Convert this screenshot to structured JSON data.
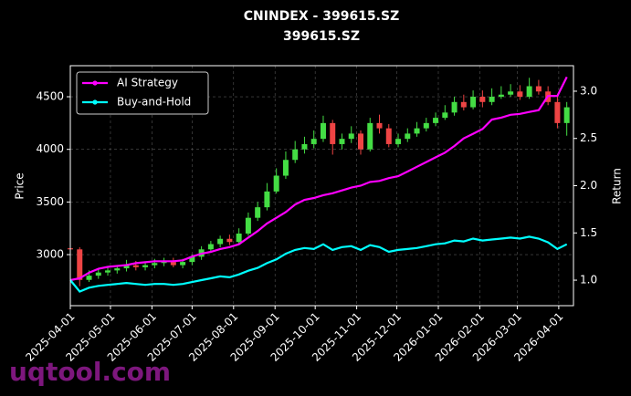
{
  "chart_data": {
    "type": "candlestick-dual",
    "title": "CNINDEX - 399615.SZ",
    "subtitle": "399615.SZ",
    "ylabel": "Price",
    "y2label": "Return",
    "watermark": "uqtool.com",
    "grid": true,
    "legend": "upper left",
    "up_color": "#44dd44",
    "down_color": "#ee4444",
    "x": [
      "2025-04-01",
      "2025-04-08",
      "2025-04-15",
      "2025-04-22",
      "2025-04-29",
      "2025-05-06",
      "2025-05-13",
      "2025-05-20",
      "2025-05-27",
      "2025-06-03",
      "2025-06-10",
      "2025-06-17",
      "2025-06-24",
      "2025-07-01",
      "2025-07-08",
      "2025-07-15",
      "2025-07-22",
      "2025-07-29",
      "2025-08-05",
      "2025-08-12",
      "2025-08-19",
      "2025-08-26",
      "2025-09-02",
      "2025-09-09",
      "2025-09-16",
      "2025-09-23",
      "2025-09-30",
      "2025-10-07",
      "2025-10-14",
      "2025-10-21",
      "2025-10-28",
      "2025-11-04",
      "2025-11-11",
      "2025-11-18",
      "2025-11-25",
      "2025-12-02",
      "2025-12-09",
      "2025-12-16",
      "2025-12-23",
      "2025-12-30",
      "2026-01-06",
      "2026-01-13",
      "2026-01-20",
      "2026-01-27",
      "2026-02-03",
      "2026-02-10",
      "2026-02-17",
      "2026-02-24",
      "2026-03-03",
      "2026-03-10",
      "2026-03-17",
      "2026-03-24",
      "2026-03-31",
      "2026-04-07"
    ],
    "open": [
      3060,
      3050,
      2760,
      2800,
      2830,
      2850,
      2870,
      2900,
      2880,
      2900,
      2920,
      2930,
      2900,
      2930,
      2980,
      3050,
      3100,
      3150,
      3120,
      3200,
      3350,
      3450,
      3600,
      3750,
      3900,
      4000,
      4050,
      4100,
      4250,
      4050,
      4100,
      4150,
      4000,
      4250,
      4200,
      4050,
      4100,
      4150,
      4200,
      4250,
      4300,
      4350,
      4450,
      4400,
      4500,
      4450,
      4500,
      4520,
      4550,
      4500,
      4600,
      4550,
      4450,
      4250
    ],
    "high": [
      3100,
      3070,
      2850,
      2870,
      2890,
      2900,
      2950,
      2940,
      2930,
      2960,
      2970,
      2970,
      2960,
      3000,
      3080,
      3130,
      3180,
      3190,
      3250,
      3400,
      3500,
      3680,
      3820,
      3980,
      4080,
      4120,
      4180,
      4320,
      4280,
      4150,
      4220,
      4180,
      4300,
      4330,
      4240,
      4150,
      4200,
      4260,
      4300,
      4350,
      4420,
      4500,
      4520,
      4560,
      4560,
      4580,
      4600,
      4620,
      4610,
      4680,
      4660,
      4600,
      4500,
      4450
    ],
    "low": [
      3000,
      2700,
      2740,
      2770,
      2800,
      2820,
      2840,
      2850,
      2850,
      2870,
      2890,
      2880,
      2870,
      2900,
      2950,
      3020,
      3070,
      3090,
      3100,
      3180,
      3320,
      3420,
      3580,
      3720,
      3870,
      3960,
      4010,
      4070,
      3950,
      4000,
      4060,
      3950,
      3980,
      4150,
      4020,
      4020,
      4070,
      4120,
      4170,
      4220,
      4280,
      4320,
      4370,
      4380,
      4400,
      4420,
      4480,
      4500,
      4470,
      4480,
      4520,
      4420,
      4200,
      4130
    ],
    "close": [
      3050,
      2760,
      2800,
      2830,
      2850,
      2870,
      2900,
      2880,
      2900,
      2920,
      2930,
      2900,
      2930,
      2980,
      3050,
      3100,
      3150,
      3120,
      3200,
      3350,
      3450,
      3600,
      3750,
      3900,
      4000,
      4050,
      4100,
      4250,
      4050,
      4100,
      4150,
      4000,
      4250,
      4200,
      4050,
      4100,
      4150,
      4200,
      4250,
      4300,
      4350,
      4450,
      4400,
      4500,
      4450,
      4500,
      4520,
      4550,
      4500,
      4600,
      4550,
      4450,
      4250,
      4400
    ],
    "series": [
      {
        "name": "AI Strategy",
        "color": "#ff00ff",
        "axis": "y2",
        "values": [
          1.0,
          1.02,
          1.08,
          1.12,
          1.14,
          1.15,
          1.16,
          1.18,
          1.19,
          1.2,
          1.2,
          1.2,
          1.21,
          1.25,
          1.28,
          1.3,
          1.33,
          1.35,
          1.38,
          1.45,
          1.52,
          1.6,
          1.66,
          1.72,
          1.8,
          1.85,
          1.87,
          1.9,
          1.92,
          1.95,
          1.98,
          2.0,
          2.04,
          2.05,
          2.08,
          2.1,
          2.15,
          2.2,
          2.25,
          2.3,
          2.35,
          2.42,
          2.5,
          2.55,
          2.6,
          2.7,
          2.72,
          2.75,
          2.76,
          2.78,
          2.8,
          2.95,
          2.95,
          3.15
        ]
      },
      {
        "name": "Buy-and-Hold",
        "color": "#00ffff",
        "axis": "y2",
        "values": [
          1.0,
          0.88,
          0.92,
          0.94,
          0.95,
          0.96,
          0.97,
          0.96,
          0.95,
          0.96,
          0.96,
          0.95,
          0.96,
          0.98,
          1.0,
          1.02,
          1.04,
          1.03,
          1.06,
          1.1,
          1.13,
          1.18,
          1.22,
          1.28,
          1.32,
          1.34,
          1.33,
          1.38,
          1.32,
          1.35,
          1.36,
          1.32,
          1.37,
          1.35,
          1.3,
          1.32,
          1.33,
          1.34,
          1.36,
          1.38,
          1.39,
          1.42,
          1.41,
          1.44,
          1.42,
          1.43,
          1.44,
          1.45,
          1.44,
          1.46,
          1.44,
          1.4,
          1.33,
          1.38
        ]
      }
    ],
    "xlim": [
      "2025-04-01",
      "2026-04-12"
    ],
    "xticks": [
      "2025-04-01",
      "2025-05-01",
      "2025-06-01",
      "2025-07-01",
      "2025-08-01",
      "2025-09-01",
      "2025-10-01",
      "2025-11-01",
      "2025-12-01",
      "2026-01-01",
      "2026-02-01",
      "2026-03-01",
      "2026-04-01"
    ],
    "ylim": [
      2515,
      4795
    ],
    "yticks": [
      3000,
      3500,
      4000,
      4500
    ],
    "y2lim": [
      0.73,
      3.27
    ],
    "y2ticks": [
      {
        "value": 1,
        "label": "1.0"
      },
      1.5,
      {
        "value": 2,
        "label": "2.0"
      },
      2.5,
      {
        "value": 3,
        "label": "3.0"
      }
    ]
  }
}
